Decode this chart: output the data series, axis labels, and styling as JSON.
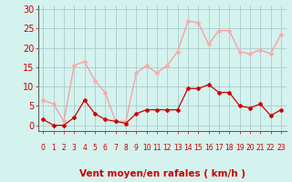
{
  "x": [
    0,
    1,
    2,
    3,
    4,
    5,
    6,
    7,
    8,
    9,
    10,
    11,
    12,
    13,
    14,
    15,
    16,
    17,
    18,
    19,
    20,
    21,
    22,
    23
  ],
  "vent_moyen": [
    1.5,
    0,
    0,
    2,
    6.5,
    3,
    1.5,
    1,
    0.5,
    3,
    4,
    4,
    4,
    4,
    9.5,
    9.5,
    10.5,
    8.5,
    8.5,
    5,
    4.5,
    5.5,
    2.5,
    4
  ],
  "rafales": [
    6.5,
    5.5,
    1,
    15.5,
    16.5,
    11.5,
    8.5,
    1,
    1,
    13.5,
    15.5,
    13.5,
    15.5,
    19,
    27,
    26.5,
    21,
    24.5,
    24.5,
    19,
    18.5,
    19.5,
    18.5,
    23.5
  ],
  "bg_color": "#d4f2ee",
  "grid_color": "#aacece",
  "line_color_moyen": "#cc0000",
  "line_color_rafales": "#ff9999",
  "marker_color_moyen": "#cc0000",
  "marker_color_rafales": "#ffaaaa",
  "xlabel": "Vent moyen/en rafales ( km/h )",
  "ylabel_ticks": [
    0,
    5,
    10,
    15,
    20,
    25,
    30
  ],
  "ylim": [
    -1.5,
    31
  ],
  "xlim": [
    -0.5,
    23.5
  ],
  "xlabel_color": "#cc0000",
  "tick_color": "#cc0000",
  "xlabel_fontsize": 7.5,
  "ytick_fontsize": 7,
  "xtick_fontsize": 5.5
}
